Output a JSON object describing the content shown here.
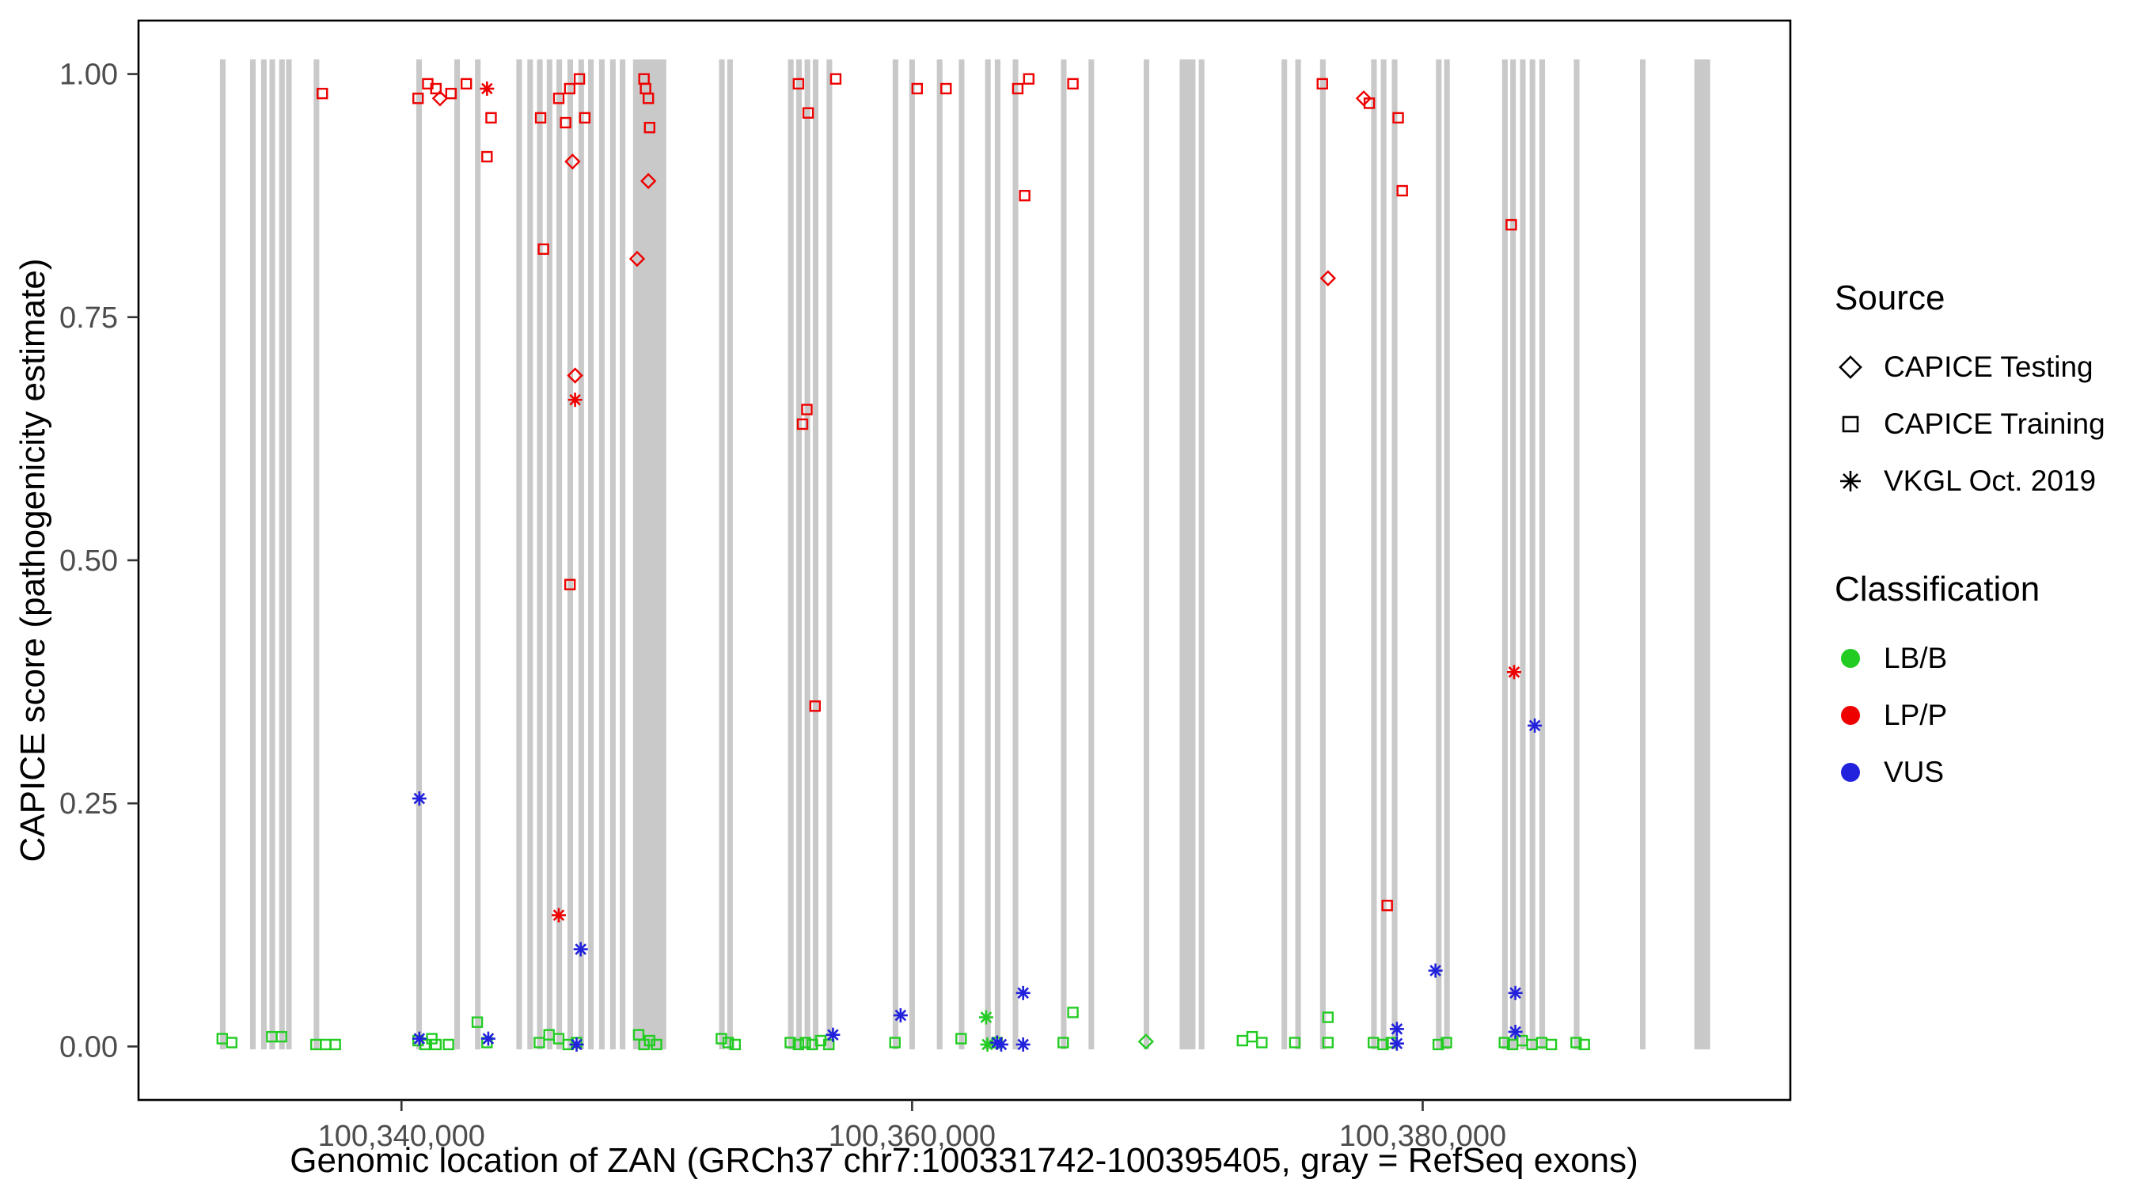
{
  "figure": {
    "xlabel": "Genomic location of ZAN (GRCh37 chr7:100331742-100395405, gray = RefSeq exons)",
    "ylabel": "CAPICE score (pathogenicity estimate)"
  },
  "colors": {
    "LB/B": "#22CC22",
    "LP/P": "#EE0000",
    "VUS": "#2222DD",
    "exon": "#C9C9C9",
    "axis": "#333333",
    "tick_text": "#4d4d4d"
  },
  "legend": {
    "source": {
      "title": "Source",
      "items": [
        {
          "label": "CAPICE Testing",
          "glyph": "diamond"
        },
        {
          "label": "CAPICE Training",
          "glyph": "square"
        },
        {
          "label": "VKGL Oct. 2019",
          "glyph": "asterisk"
        }
      ]
    },
    "classification": {
      "title": "Classification",
      "items": [
        {
          "label": "LB/B",
          "color": "#22CC22"
        },
        {
          "label": "LP/P",
          "color": "#EE0000"
        },
        {
          "label": "VUS",
          "color": "#2222DD"
        }
      ]
    }
  },
  "chart_data": {
    "type": "scatter",
    "title": "",
    "xlabel": "Genomic location of ZAN (GRCh37 chr7:100331742-100395405, gray = RefSeq exons)",
    "ylabel": "CAPICE score (pathogenicity estimate)",
    "grid": false,
    "legend_position": "right",
    "xlim": [
      100329700,
      100394400
    ],
    "ylim": [
      -0.055,
      1.055
    ],
    "x_ticks": [
      {
        "value": 100340000,
        "label": "100,340,000"
      },
      {
        "value": 100360000,
        "label": "100,360,000"
      },
      {
        "value": 100380000,
        "label": "100,380,000"
      }
    ],
    "y_ticks": [
      {
        "value": 0.0,
        "label": "0.00"
      },
      {
        "value": 0.25,
        "label": "0.25"
      },
      {
        "value": 0.5,
        "label": "0.50"
      },
      {
        "value": 0.75,
        "label": "0.75"
      },
      {
        "value": 1.0,
        "label": "1.00"
      }
    ],
    "exons": [
      [
        100332890,
        100333110
      ],
      [
        100334070,
        100334290
      ],
      [
        100334500,
        100334720
      ],
      [
        100334830,
        100335050
      ],
      [
        100335210,
        100335430
      ],
      [
        100335480,
        100335700
      ],
      [
        100336560,
        100336780
      ],
      [
        100340580,
        100340800
      ],
      [
        100342070,
        100342290
      ],
      [
        100342880,
        100343100
      ],
      [
        100344500,
        100344720
      ],
      [
        100344930,
        100345150
      ],
      [
        100345310,
        100345530
      ],
      [
        100345690,
        100345910
      ],
      [
        100346070,
        100346290
      ],
      [
        100346500,
        100346720
      ],
      [
        100346930,
        100347150
      ],
      [
        100347310,
        100347530
      ],
      [
        100347740,
        100347960
      ],
      [
        100348170,
        100348390
      ],
      [
        100348550,
        100348770
      ],
      [
        100349070,
        100350370
      ],
      [
        100352440,
        100352660
      ],
      [
        100352760,
        100352980
      ],
      [
        100355140,
        100355360
      ],
      [
        100355460,
        100355680
      ],
      [
        100355790,
        100356010
      ],
      [
        100356110,
        100356330
      ],
      [
        100356650,
        100356870
      ],
      [
        100359240,
        100359460
      ],
      [
        100359890,
        100360110
      ],
      [
        100360970,
        100361190
      ],
      [
        100361830,
        100362050
      ],
      [
        100362860,
        100363080
      ],
      [
        100363240,
        100363460
      ],
      [
        100363940,
        100364160
      ],
      [
        100365830,
        100366050
      ],
      [
        100366910,
        100367130
      ],
      [
        100369070,
        100369290
      ],
      [
        100370480,
        100371100
      ],
      [
        100371230,
        100371450
      ],
      [
        100374470,
        100374690
      ],
      [
        100375010,
        100375230
      ],
      [
        100375980,
        100376200
      ],
      [
        100377980,
        100378200
      ],
      [
        100378360,
        100378580
      ],
      [
        100378790,
        100379010
      ],
      [
        100380520,
        100380740
      ],
      [
        100380840,
        100381060
      ],
      [
        100383110,
        100383330
      ],
      [
        100383430,
        100383650
      ],
      [
        100383810,
        100384030
      ],
      [
        100384190,
        100384410
      ],
      [
        100384570,
        100384790
      ],
      [
        100385920,
        100386140
      ],
      [
        100388510,
        100388730
      ],
      [
        100390640,
        100391260
      ]
    ],
    "series": [
      {
        "name": "CAPICE Training - LB/B",
        "source": "CAPICE Training",
        "classification": "LB/B",
        "glyph": "square",
        "points": [
          [
            100332980,
            0.008
          ],
          [
            100333350,
            0.004
          ],
          [
            100334920,
            0.01
          ],
          [
            100335300,
            0.01
          ],
          [
            100336650,
            0.002
          ],
          [
            100337030,
            0.002
          ],
          [
            100337410,
            0.002
          ],
          [
            100340650,
            0.006
          ],
          [
            100340920,
            0.002
          ],
          [
            100341190,
            0.008
          ],
          [
            100341350,
            0.002
          ],
          [
            100341840,
            0.002
          ],
          [
            100342970,
            0.025
          ],
          [
            100343350,
            0.004
          ],
          [
            100345400,
            0.004
          ],
          [
            100345780,
            0.012
          ],
          [
            100346160,
            0.008
          ],
          [
            100346530,
            0.002
          ],
          [
            100346860,
            0.004
          ],
          [
            100349290,
            0.012
          ],
          [
            100349500,
            0.002
          ],
          [
            100349720,
            0.006
          ],
          [
            100349990,
            0.002
          ],
          [
            100352530,
            0.008
          ],
          [
            100352800,
            0.004
          ],
          [
            100353070,
            0.002
          ],
          [
            100355230,
            0.004
          ],
          [
            100355550,
            0.002
          ],
          [
            100355820,
            0.004
          ],
          [
            100356090,
            0.002
          ],
          [
            100356420,
            0.006
          ],
          [
            100356740,
            0.002
          ],
          [
            100359330,
            0.004
          ],
          [
            100361920,
            0.008
          ],
          [
            100363330,
            0.004
          ],
          [
            100365920,
            0.004
          ],
          [
            100366300,
            0.035
          ],
          [
            100372940,
            0.006
          ],
          [
            100373320,
            0.01
          ],
          [
            100373700,
            0.004
          ],
          [
            100374990,
            0.004
          ],
          [
            100376290,
            0.03
          ],
          [
            100376290,
            0.004
          ],
          [
            100378070,
            0.004
          ],
          [
            100378450,
            0.002
          ],
          [
            100378770,
            0.004
          ],
          [
            100380610,
            0.002
          ],
          [
            100380930,
            0.004
          ],
          [
            100383200,
            0.004
          ],
          [
            100383520,
            0.002
          ],
          [
            100383900,
            0.006
          ],
          [
            100384280,
            0.002
          ],
          [
            100384660,
            0.004
          ],
          [
            100385040,
            0.002
          ],
          [
            100386010,
            0.004
          ],
          [
            100386330,
            0.002
          ]
        ]
      },
      {
        "name": "CAPICE Training - LP/P",
        "source": "CAPICE Training",
        "classification": "LP/P",
        "glyph": "square",
        "points": [
          [
            100336900,
            0.98
          ],
          [
            100340650,
            0.975
          ],
          [
            100341030,
            0.99
          ],
          [
            100341350,
            0.985
          ],
          [
            100341940,
            0.98
          ],
          [
            100342540,
            0.99
          ],
          [
            100343510,
            0.955
          ],
          [
            100343350,
            0.915
          ],
          [
            100345450,
            0.955
          ],
          [
            100345560,
            0.82
          ],
          [
            100346160,
            0.975
          ],
          [
            100346430,
            0.95
          ],
          [
            100346590,
            0.985
          ],
          [
            100346970,
            0.995
          ],
          [
            100347180,
            0.955
          ],
          [
            100346600,
            0.475
          ],
          [
            100349500,
            0.995
          ],
          [
            100349560,
            0.985
          ],
          [
            100349670,
            0.975
          ],
          [
            100349720,
            0.945
          ],
          [
            100355550,
            0.99
          ],
          [
            100355930,
            0.96
          ],
          [
            100357010,
            0.995
          ],
          [
            100355880,
            0.655
          ],
          [
            100355710,
            0.64
          ],
          [
            100356200,
            0.35
          ],
          [
            100360200,
            0.985
          ],
          [
            100361330,
            0.985
          ],
          [
            100364140,
            0.985
          ],
          [
            100364570,
            0.995
          ],
          [
            100364410,
            0.875
          ],
          [
            100366300,
            0.99
          ],
          [
            100376070,
            0.99
          ],
          [
            100377910,
            0.97
          ],
          [
            100379040,
            0.955
          ],
          [
            100379200,
            0.88
          ],
          [
            100378610,
            0.145
          ],
          [
            100383470,
            0.845
          ]
        ]
      },
      {
        "name": "CAPICE Testing - LB/B",
        "source": "CAPICE Testing",
        "classification": "LB/B",
        "glyph": "diamond",
        "points": [
          [
            100369160,
            0.005
          ]
        ]
      },
      {
        "name": "CAPICE Testing - LP/P",
        "source": "CAPICE Testing",
        "classification": "LP/P",
        "glyph": "diamond",
        "points": [
          [
            100341510,
            0.975
          ],
          [
            100346700,
            0.91
          ],
          [
            100346800,
            0.69
          ],
          [
            100349670,
            0.89
          ],
          [
            100349230,
            0.81
          ],
          [
            100376290,
            0.79
          ],
          [
            100377690,
            0.975
          ]
        ]
      },
      {
        "name": "VKGL Oct. 2019 - LB/B",
        "source": "VKGL Oct. 2019",
        "classification": "LB/B",
        "glyph": "asterisk",
        "points": [
          [
            100362900,
            0.03
          ],
          [
            100362950,
            0.002
          ]
        ]
      },
      {
        "name": "VKGL Oct. 2019 - VUS",
        "source": "VKGL Oct. 2019",
        "classification": "VUS",
        "glyph": "asterisk",
        "points": [
          [
            100340700,
            0.255
          ],
          [
            100347020,
            0.1
          ],
          [
            100359550,
            0.032
          ],
          [
            100364350,
            0.055
          ],
          [
            100384390,
            0.33
          ],
          [
            100383630,
            0.055
          ],
          [
            100380500,
            0.078
          ],
          [
            100383630,
            0.015
          ],
          [
            100340700,
            0.008
          ],
          [
            100343400,
            0.008
          ],
          [
            100356900,
            0.012
          ],
          [
            100363490,
            0.002
          ],
          [
            100363330,
            0.004
          ],
          [
            100378990,
            0.018
          ],
          [
            100378990,
            0.003
          ],
          [
            100346860,
            0.002
          ],
          [
            100364350,
            0.002
          ]
        ]
      },
      {
        "name": "VKGL Oct. 2019 - LP/P",
        "source": "VKGL Oct. 2019",
        "classification": "LP/P",
        "glyph": "asterisk",
        "points": [
          [
            100343350,
            0.985
          ],
          [
            100346800,
            0.665
          ],
          [
            100346160,
            0.135
          ],
          [
            100383580,
            0.385
          ]
        ]
      }
    ]
  }
}
